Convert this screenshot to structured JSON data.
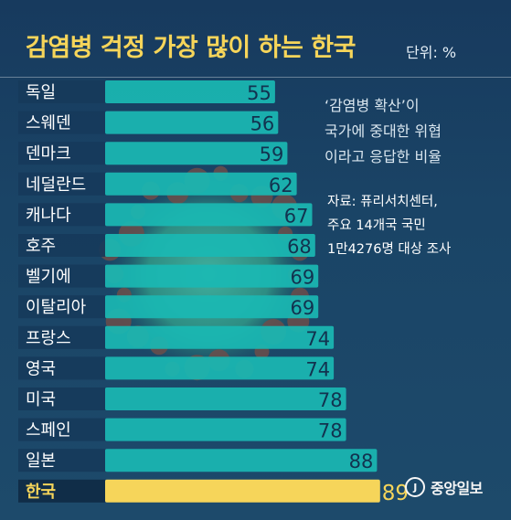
{
  "header": {
    "title": "감염병 걱정 가장 많이 하는 한국",
    "unit": "단위: %"
  },
  "note": {
    "lines": [
      "‘감염병 확산’이",
      "국가에 중대한 위협",
      "이라고 응답한 비율"
    ]
  },
  "source": {
    "lines": [
      "자료: 퓨리서치센터,",
      "주요 14개국 국민",
      "1만4276명 대상 조사"
    ]
  },
  "logo": {
    "text": "중앙일보",
    "icon": "joongang-logo-icon"
  },
  "colors": {
    "bar": "#1ab9b3",
    "highlight_bar": "#f6d55a",
    "title": "#f6d55a",
    "background": "#1a4466"
  },
  "chart_data": {
    "type": "bar",
    "orientation": "horizontal",
    "categories": [
      "독일",
      "스웨덴",
      "덴마크",
      "네덜란드",
      "캐나다",
      "호주",
      "벨기에",
      "이탈리아",
      "프랑스",
      "영국",
      "미국",
      "스페인",
      "일본",
      "한국"
    ],
    "values": [
      55,
      56,
      59,
      62,
      67,
      68,
      69,
      69,
      74,
      74,
      78,
      78,
      88,
      89
    ],
    "highlight": "한국",
    "title": "감염병 걱정 가장 많이 하는 한국",
    "xlabel": "",
    "ylabel": "",
    "unit": "%",
    "xlim": [
      0,
      100
    ],
    "grid": false,
    "legend": "none"
  }
}
